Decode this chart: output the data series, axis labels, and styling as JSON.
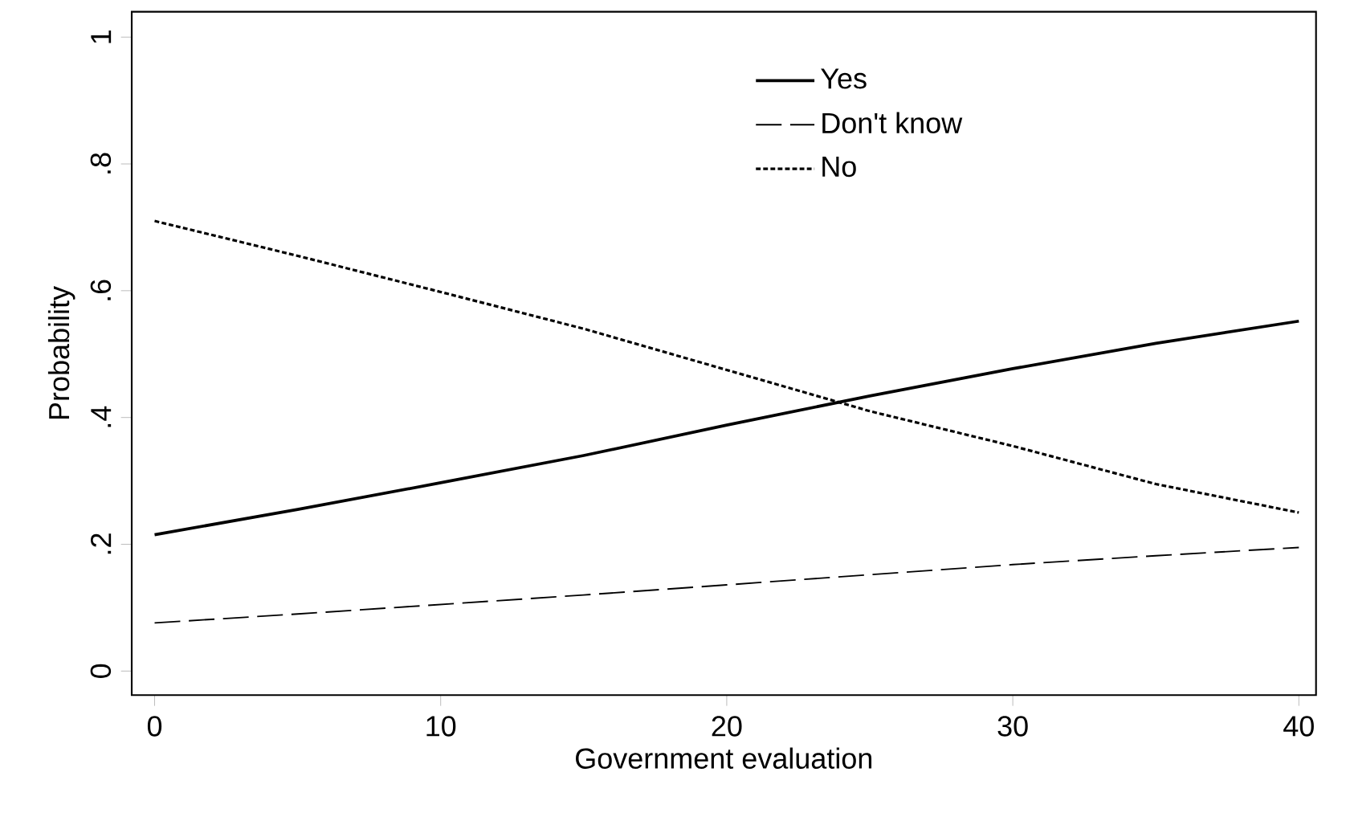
{
  "chart_data": {
    "type": "line",
    "xlabel": "Government evaluation",
    "ylabel": "Probability",
    "x": [
      0,
      5,
      10,
      15,
      20,
      25,
      30,
      35,
      40
    ],
    "series": [
      {
        "name": "Yes",
        "color": "#000000",
        "line_style": "solid",
        "values": [
          0.215,
          0.255,
          0.297,
          0.34,
          0.388,
          0.434,
          0.477,
          0.517,
          0.552
        ]
      },
      {
        "name": "Don't know",
        "color": "#000000",
        "line_style": "dashed",
        "values": [
          0.076,
          0.09,
          0.105,
          0.12,
          0.136,
          0.152,
          0.168,
          0.182,
          0.195
        ]
      },
      {
        "name": "No",
        "color": "#000000",
        "line_style": "dotted",
        "values": [
          0.71,
          0.655,
          0.598,
          0.54,
          0.475,
          0.41,
          0.355,
          0.295,
          0.25
        ]
      }
    ],
    "xlim": [
      -0.8,
      40.6
    ],
    "ylim": [
      -0.038,
      1.04
    ],
    "xticks": [
      0,
      10,
      20,
      30,
      40
    ],
    "yticks": [
      0,
      {
        "value": 0.2,
        "label": ".2"
      },
      {
        "value": 0.4,
        "label": ".4"
      },
      {
        "value": 0.6,
        "label": ".6"
      },
      {
        "value": 0.8,
        "label": ".8"
      },
      1
    ],
    "grid": false,
    "legend": "top right",
    "marker": "none"
  }
}
